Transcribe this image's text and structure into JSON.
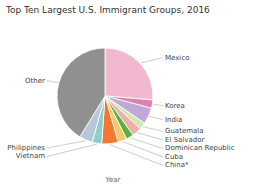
{
  "chart_data": {
    "type": "pie",
    "title": "Top Ten Largest U.S. Immigrant Groups, 2016",
    "xlabel": "Year",
    "categories": [
      "Mexico",
      "Korea",
      "India",
      "Guatemala",
      "El Salvador",
      "Dominican Republic",
      "Cuba",
      "China*",
      "Vietnam",
      "Philippines",
      "Other"
    ],
    "values": [
      26.3,
      2.8,
      5.5,
      2.3,
      3.2,
      2.5,
      3.0,
      5.5,
      3.2,
      4.5,
      41.2
    ],
    "colors": [
      "#f2b8d0",
      "#e080b0",
      "#c0a8d8",
      "#d0e8b0",
      "#f0b0a8",
      "#5ab040",
      "#f0c870",
      "#f07830",
      "#90ccc8",
      "#b8c8d8",
      "#909090"
    ]
  }
}
